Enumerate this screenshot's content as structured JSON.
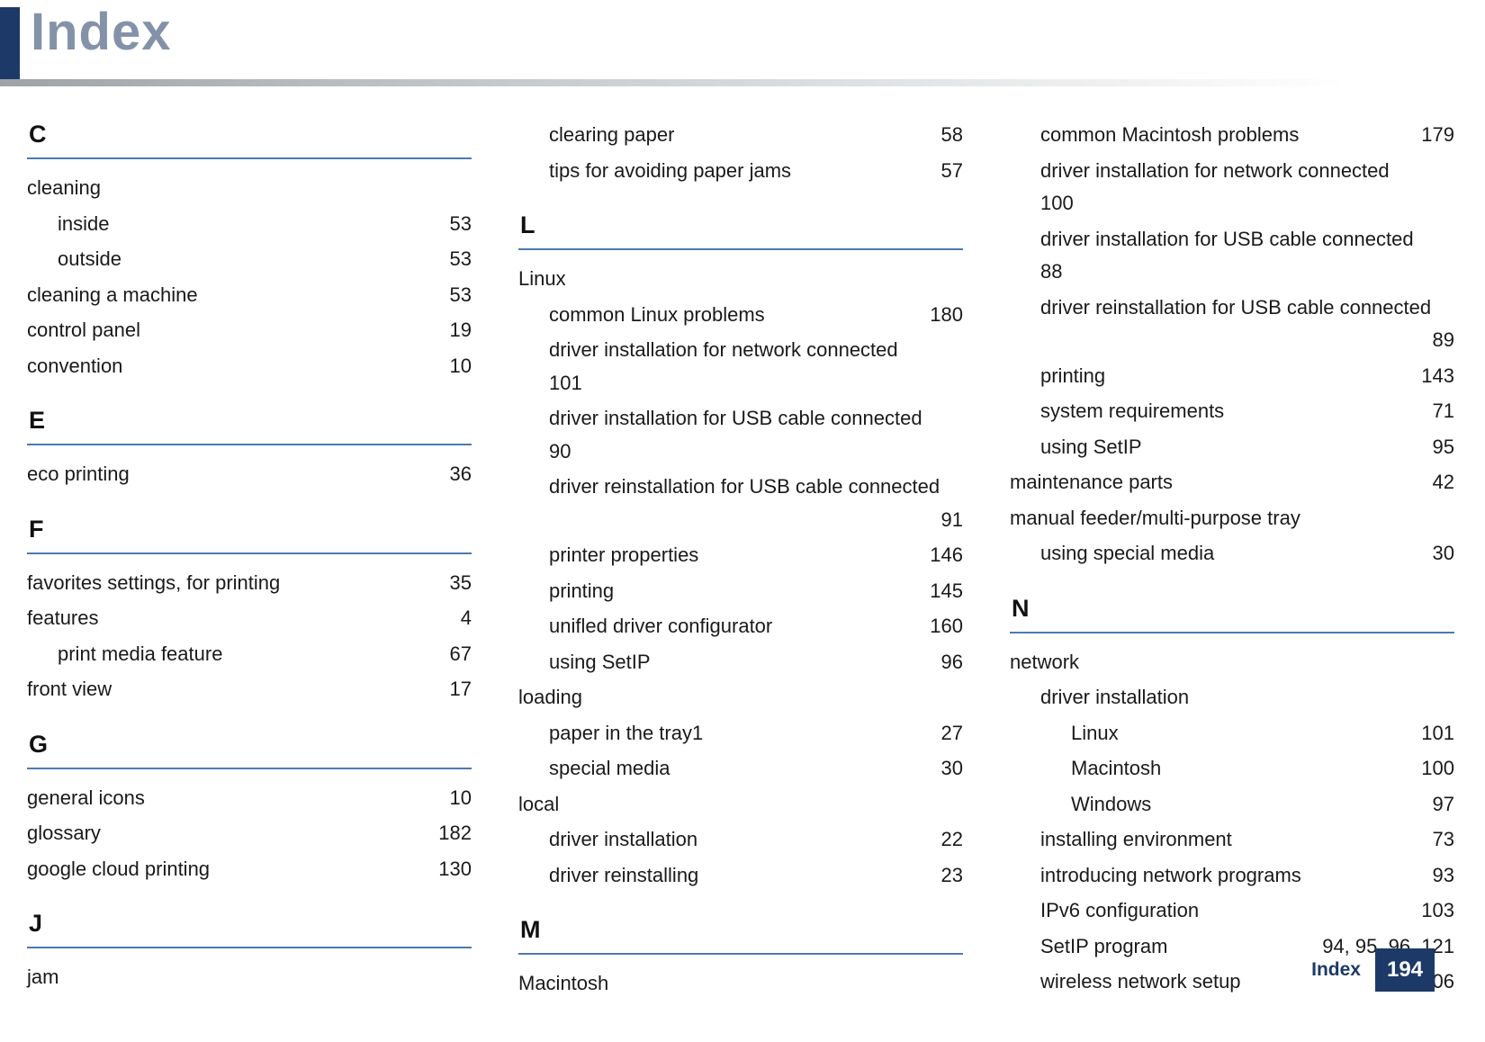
{
  "header": {
    "title": "Index"
  },
  "footer": {
    "label": "Index",
    "page_number": "194"
  },
  "colors": {
    "accent": "#1d3967",
    "title_text": "#8492a9",
    "section_rule": "#4d79ad"
  },
  "columns": [
    {
      "blocks": [
        {
          "type": "section",
          "letter": "C"
        },
        {
          "type": "entry",
          "label": "cleaning",
          "indent": 0
        },
        {
          "type": "entry",
          "label": "inside",
          "page": "53",
          "indent": 1
        },
        {
          "type": "entry",
          "label": "outside",
          "page": "53",
          "indent": 1
        },
        {
          "type": "entry",
          "label": "cleaning a machine",
          "page": "53",
          "indent": 0
        },
        {
          "type": "entry",
          "label": "control panel",
          "page": "19",
          "indent": 0
        },
        {
          "type": "entry",
          "label": "convention",
          "page": "10",
          "indent": 0
        },
        {
          "type": "section",
          "letter": "E"
        },
        {
          "type": "entry",
          "label": "eco printing",
          "page": "36",
          "indent": 0
        },
        {
          "type": "section",
          "letter": "F"
        },
        {
          "type": "entry",
          "label": "favorites settings, for printing",
          "page": "35",
          "indent": 0
        },
        {
          "type": "entry",
          "label": "features",
          "page": "4",
          "indent": 0
        },
        {
          "type": "entry",
          "label": "print media feature",
          "page": "67",
          "indent": 1
        },
        {
          "type": "entry",
          "label": "front view",
          "page": "17",
          "indent": 0
        },
        {
          "type": "section",
          "letter": "G"
        },
        {
          "type": "entry",
          "label": "general icons",
          "page": "10",
          "indent": 0
        },
        {
          "type": "entry",
          "label": "glossary",
          "page": "182",
          "indent": 0
        },
        {
          "type": "entry",
          "label": "google cloud printing",
          "page": "130",
          "indent": 0
        },
        {
          "type": "section",
          "letter": "J"
        },
        {
          "type": "entry",
          "label": "jam",
          "indent": 0
        }
      ]
    },
    {
      "blocks": [
        {
          "type": "entry",
          "label": "clearing paper",
          "page": "58",
          "indent": 1
        },
        {
          "type": "entry",
          "label": "tips for avoiding paper jams",
          "page": "57",
          "indent": 1
        },
        {
          "type": "section",
          "letter": "L"
        },
        {
          "type": "entry",
          "label": "Linux",
          "indent": 0
        },
        {
          "type": "entry",
          "label": "common Linux problems",
          "page": "180",
          "indent": 1
        },
        {
          "type": "entry",
          "label": "driver installation for network connected",
          "page": "101",
          "indent": 1,
          "page_position": "next-line-left"
        },
        {
          "type": "entry",
          "label": "driver installation for USB cable connected",
          "page": "90",
          "indent": 1,
          "page_position": "next-line-left"
        },
        {
          "type": "entry",
          "label": "driver reinstallation for USB cable connected",
          "page": "91",
          "indent": 1,
          "page_position": "next-line-right"
        },
        {
          "type": "entry",
          "label": "printer properties",
          "page": "146",
          "indent": 1
        },
        {
          "type": "entry",
          "label": "printing",
          "page": "145",
          "indent": 1
        },
        {
          "type": "entry",
          "label": "unifled driver configurator",
          "page": "160",
          "indent": 1
        },
        {
          "type": "entry",
          "label": "using SetIP",
          "page": "96",
          "indent": 1
        },
        {
          "type": "entry",
          "label": "loading",
          "indent": 0
        },
        {
          "type": "entry",
          "label": "paper in the tray1",
          "page": "27",
          "indent": 1
        },
        {
          "type": "entry",
          "label": "special media",
          "page": "30",
          "indent": 1
        },
        {
          "type": "entry",
          "label": "local",
          "indent": 0
        },
        {
          "type": "entry",
          "label": "driver installation",
          "page": "22",
          "indent": 1
        },
        {
          "type": "entry",
          "label": "driver reinstalling",
          "page": "23",
          "indent": 1
        },
        {
          "type": "section",
          "letter": "M"
        },
        {
          "type": "entry",
          "label": "Macintosh",
          "indent": 0
        }
      ]
    },
    {
      "blocks": [
        {
          "type": "entry",
          "label": "common Macintosh problems",
          "page": "179",
          "indent": 1
        },
        {
          "type": "entry",
          "label": "driver installation for network connected",
          "page": "100",
          "indent": 1,
          "page_position": "next-line-left"
        },
        {
          "type": "entry",
          "label": "driver installation for USB cable connected",
          "page": "88",
          "indent": 1,
          "page_position": "next-line-left"
        },
        {
          "type": "entry",
          "label": "driver reinstallation for USB cable connected",
          "page": "89",
          "indent": 1,
          "page_position": "next-line-right"
        },
        {
          "type": "entry",
          "label": "printing",
          "page": "143",
          "indent": 1
        },
        {
          "type": "entry",
          "label": "system requirements",
          "page": "71",
          "indent": 1
        },
        {
          "type": "entry",
          "label": "using SetIP",
          "page": "95",
          "indent": 1
        },
        {
          "type": "entry",
          "label": "maintenance parts",
          "page": "42",
          "indent": 0
        },
        {
          "type": "entry",
          "label": "manual feeder/multi-purpose tray",
          "indent": 0
        },
        {
          "type": "entry",
          "label": "using special media",
          "page": "30",
          "indent": 1
        },
        {
          "type": "section",
          "letter": "N"
        },
        {
          "type": "entry",
          "label": "network",
          "indent": 0
        },
        {
          "type": "entry",
          "label": "driver installation",
          "indent": 1
        },
        {
          "type": "entry",
          "label": "Linux",
          "page": "101",
          "indent": 2
        },
        {
          "type": "entry",
          "label": "Macintosh",
          "page": "100",
          "indent": 2
        },
        {
          "type": "entry",
          "label": "Windows",
          "page": "97",
          "indent": 2
        },
        {
          "type": "entry",
          "label": "installing environment",
          "page": "73",
          "indent": 1
        },
        {
          "type": "entry",
          "label": "introducing network programs",
          "page": "93",
          "indent": 1
        },
        {
          "type": "entry",
          "label": "IPv6 configuration",
          "page": "103",
          "indent": 1
        },
        {
          "type": "entry",
          "label": "SetIP program",
          "page": "94, 95, 96, 121",
          "indent": 1
        },
        {
          "type": "entry",
          "label": "wireless network setup",
          "page": "106",
          "indent": 1
        }
      ]
    }
  ]
}
